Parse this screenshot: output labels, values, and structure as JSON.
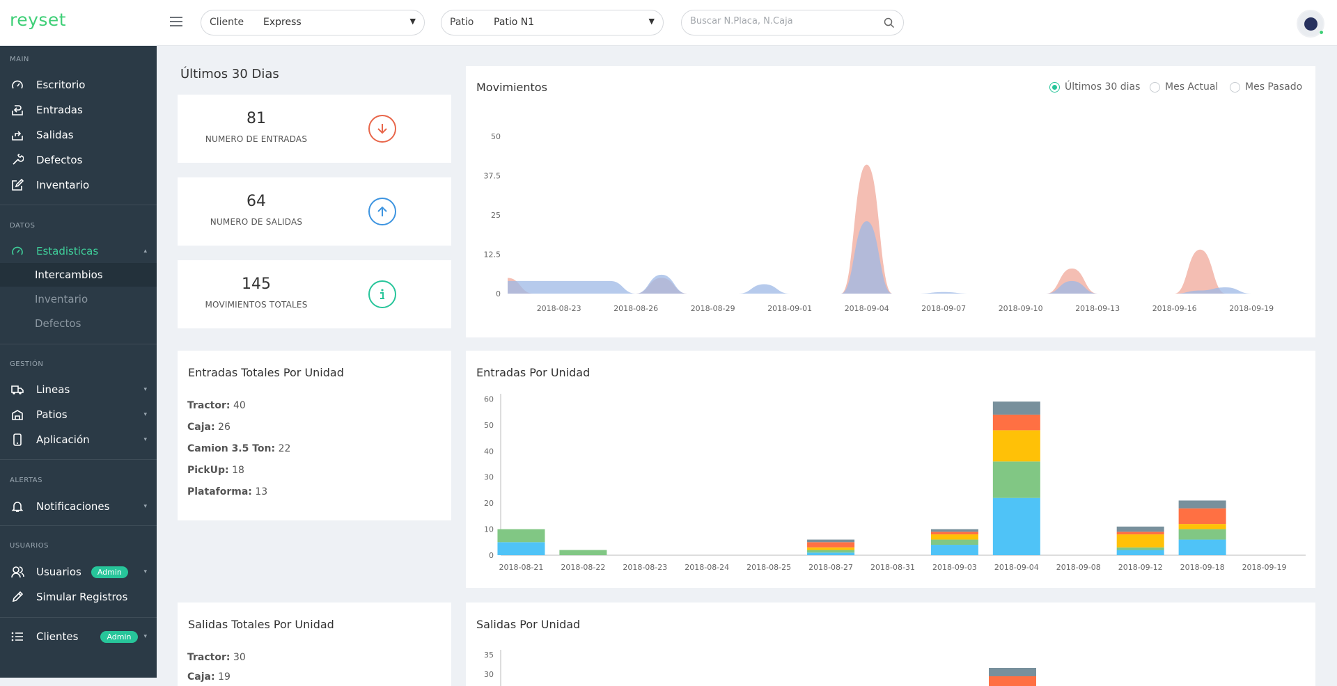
{
  "app": {
    "logo": "reyset"
  },
  "header": {
    "cliente_label": "Cliente",
    "cliente_value": "Express",
    "patio_label": "Patio",
    "patio_value": "Patio N1",
    "search_placeholder": "Buscar N.Placa, N.Caja"
  },
  "sidebar": {
    "sections": {
      "main": "MAIN",
      "datos": "DATOS",
      "gestion": "GESTIÓN",
      "alertas": "ALERTAS",
      "usuarios": "USUARIOS"
    },
    "main_items": [
      {
        "label": "Escritorio",
        "icon": "dashboard-icon"
      },
      {
        "label": "Entradas",
        "icon": "entry-icon"
      },
      {
        "label": "Salidas",
        "icon": "exit-icon"
      },
      {
        "label": "Defectos",
        "icon": "wrench-icon"
      },
      {
        "label": "Inventario",
        "icon": "edit-icon"
      }
    ],
    "datos_item": {
      "label": "Estadisticas",
      "icon": "gauge-icon"
    },
    "datos_subitems": [
      "Intercambios",
      "Inventario",
      "Defectos"
    ],
    "gestion_items": [
      {
        "label": "Lineas",
        "icon": "truck-icon"
      },
      {
        "label": "Patios",
        "icon": "warehouse-icon"
      },
      {
        "label": "Aplicación",
        "icon": "phone-icon"
      }
    ],
    "alertas_item": {
      "label": "Notificaciones",
      "icon": "bell-icon"
    },
    "usuarios_item": {
      "label": "Usuarios",
      "badge": "Admin",
      "icon": "users-icon"
    },
    "simular_item": {
      "label": "Simular Registros",
      "icon": "pencil-icon"
    },
    "clientes_item": {
      "label": "Clientes",
      "badge": "Admin",
      "icon": "list-icon"
    }
  },
  "summary": {
    "title": "Últimos 30 Dias",
    "stats": [
      {
        "value": "81",
        "label": "NUMERO DE ENTRADAS",
        "icon": "arrow-down-circle-icon",
        "color": "#e8664a"
      },
      {
        "value": "64",
        "label": "NUMERO DE SALIDAS",
        "icon": "arrow-up-circle-icon",
        "color": "#3d94e0"
      },
      {
        "value": "145",
        "label": "MOVIMIENTOS TOTALES",
        "icon": "info-circle-icon",
        "color": "#27c59a"
      }
    ]
  },
  "movimientos": {
    "title": "Movimientos",
    "options": [
      "Últimos 30 dias",
      "Mes Actual",
      "Mes Pasado"
    ],
    "selected": 0
  },
  "entradas_totales": {
    "title": "Entradas Totales Por Unidad",
    "items": [
      {
        "label": "Tractor:",
        "value": "40"
      },
      {
        "label": "Caja:",
        "value": "26"
      },
      {
        "label": "Camion 3.5 Ton:",
        "value": "22"
      },
      {
        "label": "PickUp:",
        "value": "18"
      },
      {
        "label": "Plataforma:",
        "value": "13"
      }
    ]
  },
  "salidas_totales": {
    "title": "Salidas Totales Por Unidad",
    "items": [
      {
        "label": "Tractor:",
        "value": "30"
      },
      {
        "label": "Caja:",
        "value": "19"
      }
    ]
  },
  "chart_data": [
    {
      "type": "area",
      "title": "Movimientos",
      "x": [
        "2018-08-21",
        "2018-08-22",
        "2018-08-23",
        "2018-08-24",
        "2018-08-25",
        "2018-08-26",
        "2018-08-27",
        "2018-08-28",
        "2018-08-29",
        "2018-08-30",
        "2018-08-31",
        "2018-09-01",
        "2018-09-02",
        "2018-09-03",
        "2018-09-04",
        "2018-09-05",
        "2018-09-06",
        "2018-09-07",
        "2018-09-08",
        "2018-09-09",
        "2018-09-10",
        "2018-09-11",
        "2018-09-12",
        "2018-09-13",
        "2018-09-14",
        "2018-09-15",
        "2018-09-16",
        "2018-09-17",
        "2018-09-18",
        "2018-09-19",
        "2018-09-20"
      ],
      "xticks": [
        "2018-08-23",
        "2018-08-26",
        "2018-08-29",
        "2018-09-01",
        "2018-09-04",
        "2018-09-07",
        "2018-09-10",
        "2018-09-13",
        "2018-09-16",
        "2018-09-19"
      ],
      "yticks": [
        "0",
        "12.5",
        "25",
        "37.5",
        "50"
      ],
      "ylim": [
        0,
        50
      ],
      "series": [
        {
          "color": "#f0a899",
          "values": [
            5,
            0,
            0,
            0,
            0,
            0,
            5,
            0,
            0,
            0,
            0,
            0,
            0,
            0,
            41,
            0,
            0,
            0,
            0,
            0,
            0,
            0,
            8,
            0,
            0,
            0,
            0,
            14,
            0,
            0,
            0
          ]
        },
        {
          "color": "#9db8e6",
          "values": [
            4,
            4,
            4,
            4,
            4,
            0,
            6,
            0,
            0,
            0,
            3,
            0,
            0,
            0,
            23,
            0,
            0,
            0.5,
            0,
            0,
            0,
            0,
            4,
            0,
            0,
            0,
            0,
            1,
            2,
            0,
            0
          ]
        }
      ]
    },
    {
      "type": "bar",
      "title": "Entradas Por Unidad",
      "categories": [
        "2018-08-21",
        "2018-08-22",
        "2018-08-23",
        "2018-08-24",
        "2018-08-25",
        "2018-08-27",
        "2018-08-31",
        "2018-09-03",
        "2018-09-04",
        "2018-09-08",
        "2018-09-12",
        "2018-09-18",
        "2018-09-19"
      ],
      "yticks": [
        "0",
        "10",
        "20",
        "30",
        "40",
        "50",
        "60"
      ],
      "ylim": [
        0,
        62
      ],
      "stacked": true,
      "series": [
        {
          "color": "#4fc3f7",
          "values": [
            5,
            0,
            0,
            0,
            0,
            1,
            0,
            4,
            22,
            0,
            2,
            6,
            0
          ]
        },
        {
          "color": "#81c784",
          "values": [
            5,
            2,
            0,
            0,
            0,
            1,
            0,
            2,
            14,
            0,
            1,
            4,
            0
          ]
        },
        {
          "color": "#ffc107",
          "values": [
            0,
            0,
            0,
            0,
            0,
            1,
            0,
            2,
            12,
            0,
            5,
            2,
            0
          ]
        },
        {
          "color": "#ff7043",
          "values": [
            0,
            0,
            0,
            0,
            0,
            2,
            0,
            1,
            6,
            0,
            1,
            6,
            0
          ]
        },
        {
          "color": "#78909c",
          "values": [
            0,
            0,
            0,
            0,
            0,
            1,
            0,
            1,
            5,
            0,
            2,
            3,
            0
          ]
        }
      ]
    },
    {
      "type": "bar",
      "title": "Salidas Por Unidad",
      "yticks": [
        "35",
        "30"
      ]
    }
  ]
}
